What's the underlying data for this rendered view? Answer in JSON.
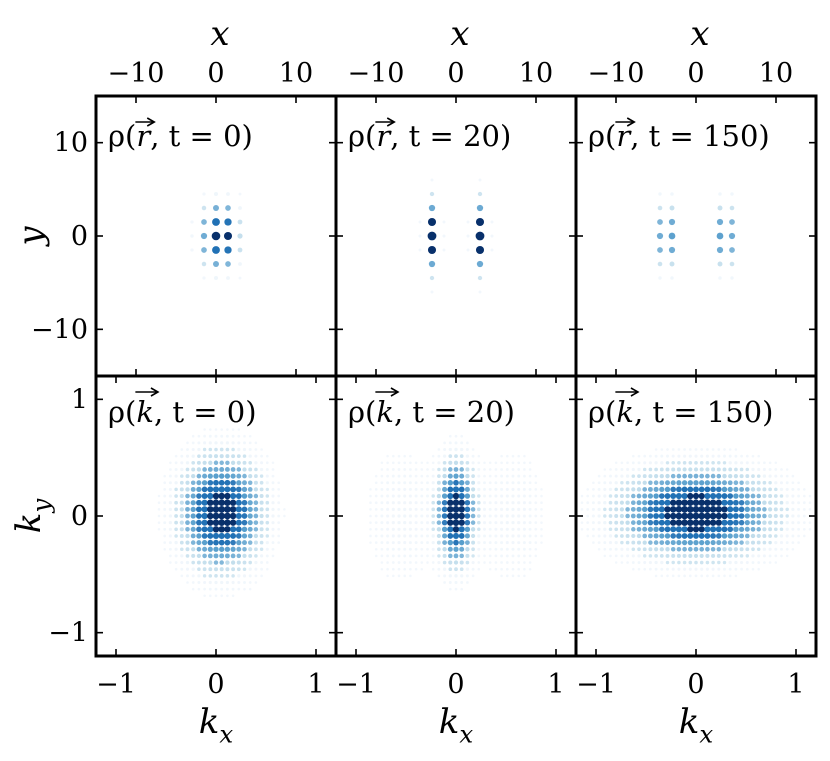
{
  "chart_data": {
    "type": "scatter",
    "layout": {
      "rows": 2,
      "cols": 3
    },
    "top_axis": {
      "label": "x",
      "ticks": [
        -10,
        0,
        10
      ],
      "tick_labels": [
        "−10",
        "0",
        "10"
      ],
      "xlim": [
        -15,
        15
      ]
    },
    "row_axes": [
      {
        "ylabel": "y",
        "ylim": [
          -15,
          15
        ],
        "yticks": [
          10,
          0,
          -10
        ],
        "ytick_labels": [
          "10",
          "0",
          "−10"
        ]
      },
      {
        "ylabel": "k_y",
        "ylim": [
          -1.2,
          1.2
        ],
        "yticks": [
          1,
          0,
          -1
        ],
        "ytick_labels": [
          "1",
          "0",
          "−1"
        ]
      }
    ],
    "bottom_axis": {
      "label": "k_x",
      "ticks": [
        -1,
        0,
        1
      ],
      "tick_labels": [
        "−1",
        "0",
        "1"
      ],
      "xlim": [
        -1.2,
        1.2
      ]
    },
    "colormap": [
      "#deebf7",
      "#9ecae1",
      "#4292c6",
      "#2171b5",
      "#08306b"
    ],
    "panels": [
      {
        "row": 0,
        "col": 0,
        "title": {
          "pre": "ρ(",
          "vec": "r",
          "post": ", t = 0)"
        },
        "lattice_spacing": 1.5,
        "lobes": [
          {
            "cx": 0.5,
            "cy": 0,
            "sx": 1.5,
            "sy": 2.2,
            "amp": 1.0
          }
        ]
      },
      {
        "row": 0,
        "col": 1,
        "title": {
          "pre": "ρ(",
          "vec": "r",
          "post": ", t = 20)"
        },
        "lattice_spacing": 1.5,
        "lobes": [
          {
            "cx": -3.0,
            "cy": 0,
            "sx": 0.6,
            "sy": 2.3,
            "amp": 1.0
          },
          {
            "cx": 3.0,
            "cy": 0,
            "sx": 0.6,
            "sy": 2.3,
            "amp": 1.0
          }
        ]
      },
      {
        "row": 0,
        "col": 2,
        "title": {
          "pre": "ρ(",
          "vec": "r",
          "post": ", t = 150)"
        },
        "lattice_spacing": 1.5,
        "lobes": [
          {
            "cx": -3.7,
            "cy": 0,
            "sx": 0.6,
            "sy": 2.3,
            "amp": 1.0
          },
          {
            "cx": 3.7,
            "cy": 0,
            "sx": 0.6,
            "sy": 2.3,
            "amp": 1.0
          }
        ]
      },
      {
        "row": 1,
        "col": 0,
        "title": {
          "pre": "ρ(",
          "vec": "k",
          "post": ", t = 0)"
        },
        "lattice_spacing": 0.057,
        "lobes": [
          {
            "cx": 0.05,
            "cy": 0.03,
            "sx": 0.24,
            "sy": 0.28,
            "amp": 1.0
          }
        ]
      },
      {
        "row": 1,
        "col": 1,
        "title": {
          "pre": "ρ(",
          "vec": "k",
          "post": ", t = 20)"
        },
        "lattice_spacing": 0.057,
        "lobes": [
          {
            "cx": 0.0,
            "cy": 0.03,
            "sx": 0.11,
            "sy": 0.26,
            "amp": 1.0
          },
          {
            "cx": -0.55,
            "cy": 0.0,
            "sx": 0.22,
            "sy": 0.36,
            "amp": 0.1
          },
          {
            "cx": 0.55,
            "cy": 0.0,
            "sx": 0.22,
            "sy": 0.36,
            "amp": 0.1
          }
        ]
      },
      {
        "row": 1,
        "col": 2,
        "title": {
          "pre": "ρ(",
          "vec": "k",
          "post": ", t = 150)"
        },
        "lattice_spacing": 0.057,
        "lobes": [
          {
            "cx": 0.0,
            "cy": 0.03,
            "sx": 0.45,
            "sy": 0.22,
            "amp": 1.0
          }
        ]
      }
    ]
  }
}
